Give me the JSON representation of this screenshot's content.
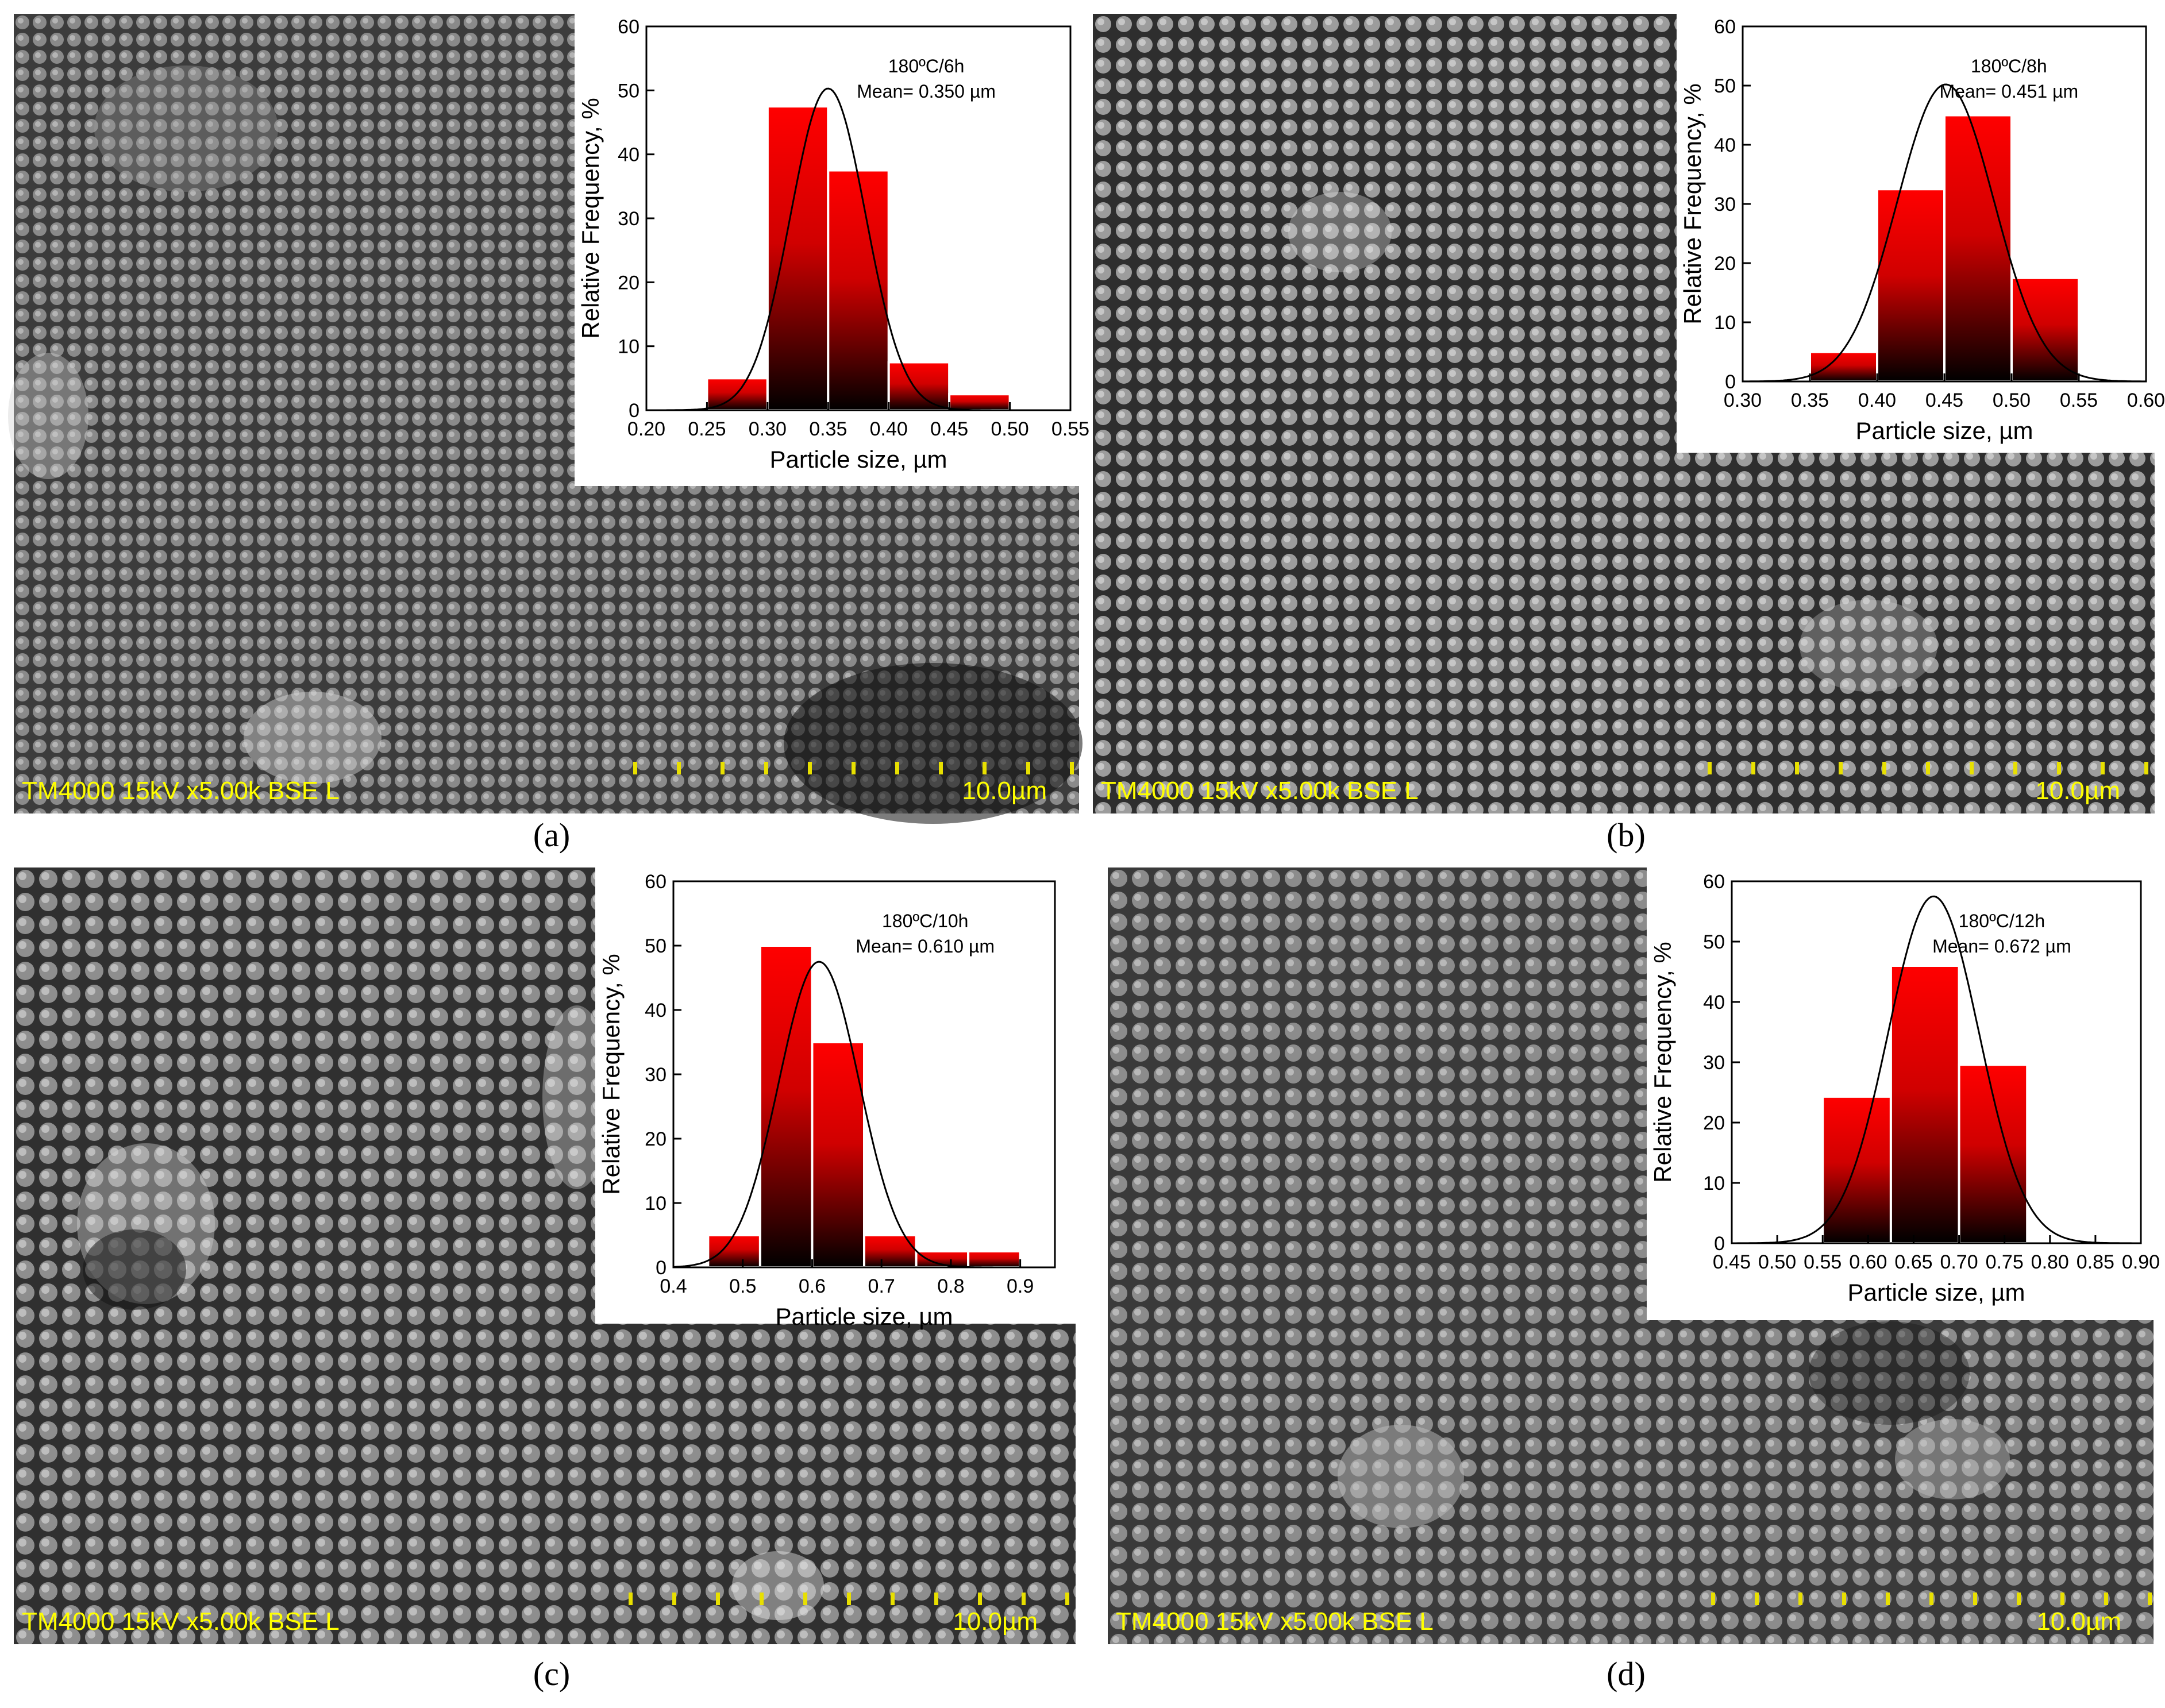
{
  "panels": [
    {
      "caption": "(a)",
      "sem_info": "TM4000 15kV x5.00k BSE L",
      "scale_label": "10.0µm",
      "chart_data": {
        "type": "bar",
        "annotation_line1": "180ºC/6h",
        "annotation_line2": "Mean= 0.350 µm",
        "xlabel": "Particle size, µm",
        "ylabel": "Relative Frequency, %",
        "xlim": [
          0.2,
          0.55
        ],
        "ylim": [
          0,
          60
        ],
        "xticks": [
          "0.20",
          "0.25",
          "0.30",
          "0.35",
          "0.40",
          "0.45",
          "0.50",
          "0.55"
        ],
        "yticks": [
          "0",
          "10",
          "20",
          "30",
          "40",
          "50",
          "60"
        ],
        "bin_width": 0.05,
        "bins": [
          {
            "start": 0.25,
            "value": 5
          },
          {
            "start": 0.3,
            "value": 47.5
          },
          {
            "start": 0.35,
            "value": 37.5
          },
          {
            "start": 0.4,
            "value": 7.5
          },
          {
            "start": 0.45,
            "value": 2.5
          }
        ],
        "fit": {
          "type": "gaussian",
          "mean": 0.35,
          "sigma": 0.031,
          "peak": 50.3
        }
      }
    },
    {
      "caption": "(b)",
      "sem_info": "TM4000 15kV x5.00k BSE L",
      "scale_label": "10.0µm",
      "chart_data": {
        "type": "bar",
        "annotation_line1": "180ºC/8h",
        "annotation_line2": "Mean= 0.451 µm",
        "xlabel": "Particle size, µm",
        "ylabel": "Relative Frequency, %",
        "xlim": [
          0.3,
          0.6
        ],
        "ylim": [
          0,
          60
        ],
        "xticks": [
          "0.30",
          "0.35",
          "0.40",
          "0.45",
          "0.50",
          "0.55",
          "0.60"
        ],
        "yticks": [
          "0",
          "10",
          "20",
          "30",
          "40",
          "50",
          "60"
        ],
        "bin_width": 0.05,
        "bins": [
          {
            "start": 0.35,
            "value": 5
          },
          {
            "start": 0.4,
            "value": 32.5
          },
          {
            "start": 0.45,
            "value": 45
          },
          {
            "start": 0.5,
            "value": 17.5
          }
        ],
        "fit": {
          "type": "gaussian",
          "mean": 0.451,
          "sigma": 0.036,
          "peak": 50.2
        }
      }
    },
    {
      "caption": "(c)",
      "sem_info": "TM4000 15kV x5.00k BSE L",
      "scale_label": "10.0µm",
      "chart_data": {
        "type": "bar",
        "annotation_line1": "180ºC/10h",
        "annotation_line2": "Mean= 0.610 µm",
        "xlabel": "Particle size, µm",
        "ylabel": "Relative Frequency, %",
        "xlim": [
          0.4,
          0.95
        ],
        "ylim": [
          0,
          60
        ],
        "xticks": [
          "0.4",
          "0.5",
          "0.6",
          "0.7",
          "0.8",
          "0.9"
        ],
        "xtick_values": [
          0.4,
          0.5,
          0.6,
          0.7,
          0.8,
          0.9
        ],
        "yticks": [
          "0",
          "10",
          "20",
          "30",
          "40",
          "50",
          "60"
        ],
        "bin_width": 0.075,
        "bins": [
          {
            "start": 0.45,
            "value": 5
          },
          {
            "start": 0.525,
            "value": 50
          },
          {
            "start": 0.6,
            "value": 35
          },
          {
            "start": 0.675,
            "value": 5
          },
          {
            "start": 0.75,
            "value": 2.5
          },
          {
            "start": 0.825,
            "value": 2.5
          }
        ],
        "fit": {
          "type": "gaussian",
          "mean": 0.61,
          "sigma": 0.058,
          "peak": 47.5
        }
      }
    },
    {
      "caption": "(d)",
      "sem_info": "TM4000 15kV x5.00k BSE L",
      "scale_label": "10.0µm",
      "chart_data": {
        "type": "bar",
        "annotation_line1": "180ºC/12h",
        "annotation_line2": "Mean= 0.672 µm",
        "xlabel": "Particle size, µm",
        "ylabel": "Relative Frequency, %",
        "xlim": [
          0.45,
          0.9
        ],
        "ylim": [
          0,
          60
        ],
        "xticks": [
          "0.45",
          "0.50",
          "0.55",
          "0.60",
          "0.65",
          "0.70",
          "0.75",
          "0.80",
          "0.85",
          "0.90"
        ],
        "yticks": [
          "0",
          "10",
          "20",
          "30",
          "40",
          "50",
          "60"
        ],
        "bin_width": 0.075,
        "bins": [
          {
            "start": 0.55,
            "value": 24.3
          },
          {
            "start": 0.625,
            "value": 46
          },
          {
            "start": 0.7,
            "value": 29.6
          }
        ],
        "fit": {
          "type": "gaussian",
          "mean": 0.672,
          "sigma": 0.05,
          "peak": 57.5
        }
      }
    }
  ]
}
